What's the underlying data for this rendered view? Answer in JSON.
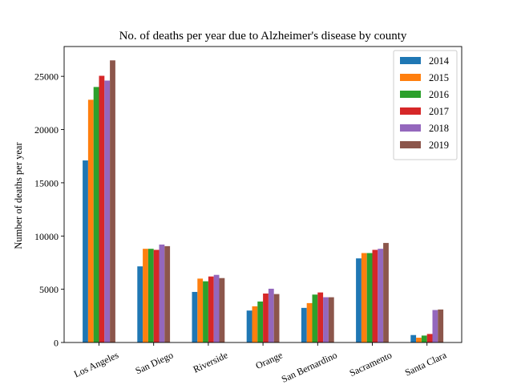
{
  "chart_data": {
    "type": "bar",
    "title": "No. of deaths per year due to Alzheimer's disease by county",
    "xlabel": "",
    "ylabel": "Number of deaths per year",
    "ylim": [
      0,
      27800
    ],
    "yticks": [
      "0",
      "5000",
      "10000",
      "15000",
      "20000",
      "25000"
    ],
    "grid": false,
    "legend_position": "top-right",
    "categories": [
      "Los Angeles",
      "San Diego",
      "Riverside",
      "Orange",
      "San Bernardino",
      "Sacramento",
      "Santa Clara"
    ],
    "series": [
      {
        "name": "2014",
        "color": "#1f77b4",
        "values": [
          17100,
          7150,
          4750,
          3000,
          3250,
          7900,
          700
        ]
      },
      {
        "name": "2015",
        "color": "#ff7f0e",
        "values": [
          22800,
          8800,
          6000,
          3400,
          3700,
          8400,
          450
        ]
      },
      {
        "name": "2016",
        "color": "#2ca02c",
        "values": [
          24000,
          8800,
          5750,
          3850,
          4500,
          8400,
          650
        ]
      },
      {
        "name": "2017",
        "color": "#d62728",
        "values": [
          25050,
          8700,
          6200,
          4600,
          4700,
          8700,
          800
        ]
      },
      {
        "name": "2018",
        "color": "#9467bd",
        "values": [
          24600,
          9200,
          6350,
          5050,
          4250,
          8800,
          3050
        ]
      },
      {
        "name": "2019",
        "color": "#8c564b",
        "values": [
          26500,
          9050,
          6050,
          4550,
          4250,
          9350,
          3100
        ]
      }
    ]
  }
}
